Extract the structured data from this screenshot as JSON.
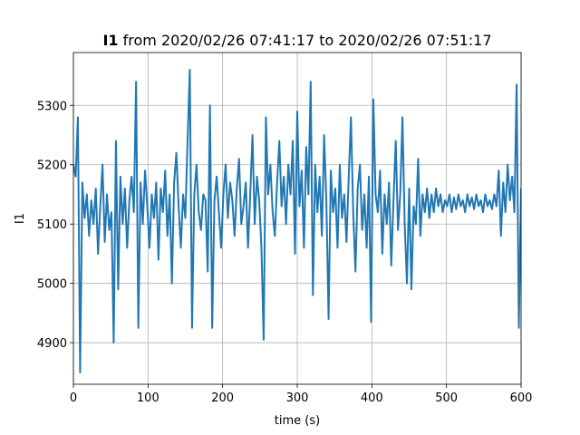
{
  "chart_data": {
    "type": "line",
    "title_parts": [
      "I1",
      " from 2020/02/26 07:41:17 to 2020/02/26 07:51:17"
    ],
    "x_label": "time (s)",
    "y_label": "I1",
    "xlim": [
      0,
      600
    ],
    "xticks": [
      0,
      100,
      200,
      300,
      400,
      500,
      600
    ],
    "ylim": [
      4830,
      5389
    ],
    "yticks": [
      4900,
      5000,
      5100,
      5200,
      5300
    ],
    "grid": true,
    "x": [
      0,
      3,
      6,
      9,
      12,
      15,
      18,
      21,
      24,
      27,
      30,
      33,
      36,
      39,
      42,
      45,
      48,
      51,
      54,
      57,
      60,
      63,
      66,
      69,
      72,
      75,
      78,
      81,
      84,
      87,
      90,
      93,
      96,
      99,
      102,
      105,
      108,
      111,
      114,
      117,
      120,
      123,
      126,
      129,
      132,
      135,
      138,
      141,
      144,
      147,
      150,
      153,
      156,
      159,
      162,
      165,
      168,
      171,
      174,
      177,
      180,
      183,
      186,
      189,
      192,
      195,
      198,
      201,
      204,
      207,
      210,
      213,
      216,
      219,
      222,
      225,
      228,
      231,
      234,
      237,
      240,
      243,
      246,
      249,
      252,
      255,
      258,
      261,
      264,
      267,
      270,
      273,
      276,
      279,
      282,
      285,
      288,
      291,
      294,
      297,
      300,
      303,
      306,
      309,
      312,
      315,
      318,
      321,
      324,
      327,
      330,
      333,
      336,
      339,
      342,
      345,
      348,
      351,
      354,
      357,
      360,
      363,
      366,
      369,
      372,
      375,
      378,
      381,
      384,
      387,
      390,
      393,
      396,
      399,
      402,
      405,
      408,
      411,
      414,
      417,
      420,
      423,
      426,
      429,
      432,
      435,
      438,
      441,
      444,
      447,
      450,
      453,
      456,
      459,
      462,
      465,
      468,
      471,
      474,
      477,
      480,
      483,
      486,
      489,
      492,
      495,
      498,
      501,
      504,
      507,
      510,
      513,
      516,
      519,
      522,
      525,
      528,
      531,
      534,
      537,
      540,
      543,
      546,
      549,
      552,
      555,
      558,
      561,
      564,
      567,
      570,
      573,
      576,
      579,
      582,
      585,
      588,
      591,
      594,
      597,
      600
    ],
    "series": [
      {
        "name": "I1",
        "color": "#1f77b4",
        "values": [
          5200,
          5180,
          5280,
          4850,
          5170,
          5110,
          5150,
          5080,
          5140,
          5100,
          5160,
          5050,
          5130,
          5200,
          5070,
          5150,
          5090,
          5120,
          4900,
          5240,
          4990,
          5180,
          5100,
          5160,
          5060,
          5140,
          5180,
          5120,
          5340,
          4925,
          5170,
          5100,
          5190,
          5130,
          5060,
          5150,
          5110,
          5170,
          5040,
          5160,
          5120,
          5190,
          5080,
          5150,
          5000,
          5170,
          5220,
          5130,
          5060,
          5150,
          5110,
          5240,
          5360,
          4925,
          5150,
          5200,
          5120,
          5090,
          5150,
          5140,
          5020,
          5300,
          4925,
          5140,
          5180,
          5120,
          5060,
          5150,
          5200,
          5110,
          5170,
          5140,
          5080,
          5160,
          5210,
          5100,
          5130,
          5170,
          5060,
          5150,
          5250,
          5100,
          5180,
          5140,
          5060,
          4905,
          5280,
          5150,
          5200,
          5120,
          5080,
          5170,
          5240,
          5130,
          5180,
          5100,
          5200,
          5150,
          5240,
          5050,
          5290,
          5130,
          5190,
          5060,
          5230,
          5150,
          5340,
          4980,
          5200,
          5120,
          5180,
          5080,
          5250,
          5140,
          4940,
          5190,
          5120,
          5160,
          5060,
          5200,
          5110,
          5150,
          5070,
          5180,
          5280,
          5120,
          5020,
          5160,
          5200,
          5090,
          5150,
          5060,
          5180,
          4935,
          5310,
          5150,
          5120,
          5190,
          5050,
          5150,
          5100,
          5170,
          5030,
          5140,
          5240,
          5090,
          5150,
          5280,
          5100,
          5000,
          5160,
          4990,
          5130,
          5100,
          5210,
          5080,
          5150,
          5120,
          5160,
          5110,
          5150,
          5120,
          5160,
          5130,
          5150,
          5120,
          5140,
          5130,
          5150,
          5120,
          5145,
          5125,
          5150,
          5130,
          5140,
          5120,
          5150,
          5130,
          5145,
          5125,
          5150,
          5130,
          5140,
          5120,
          5150,
          5130,
          5140,
          5125,
          5150,
          5130,
          5190,
          5080,
          5170,
          5120,
          5200,
          5140,
          5180,
          5120,
          5335,
          4925,
          5160
        ]
      }
    ]
  }
}
